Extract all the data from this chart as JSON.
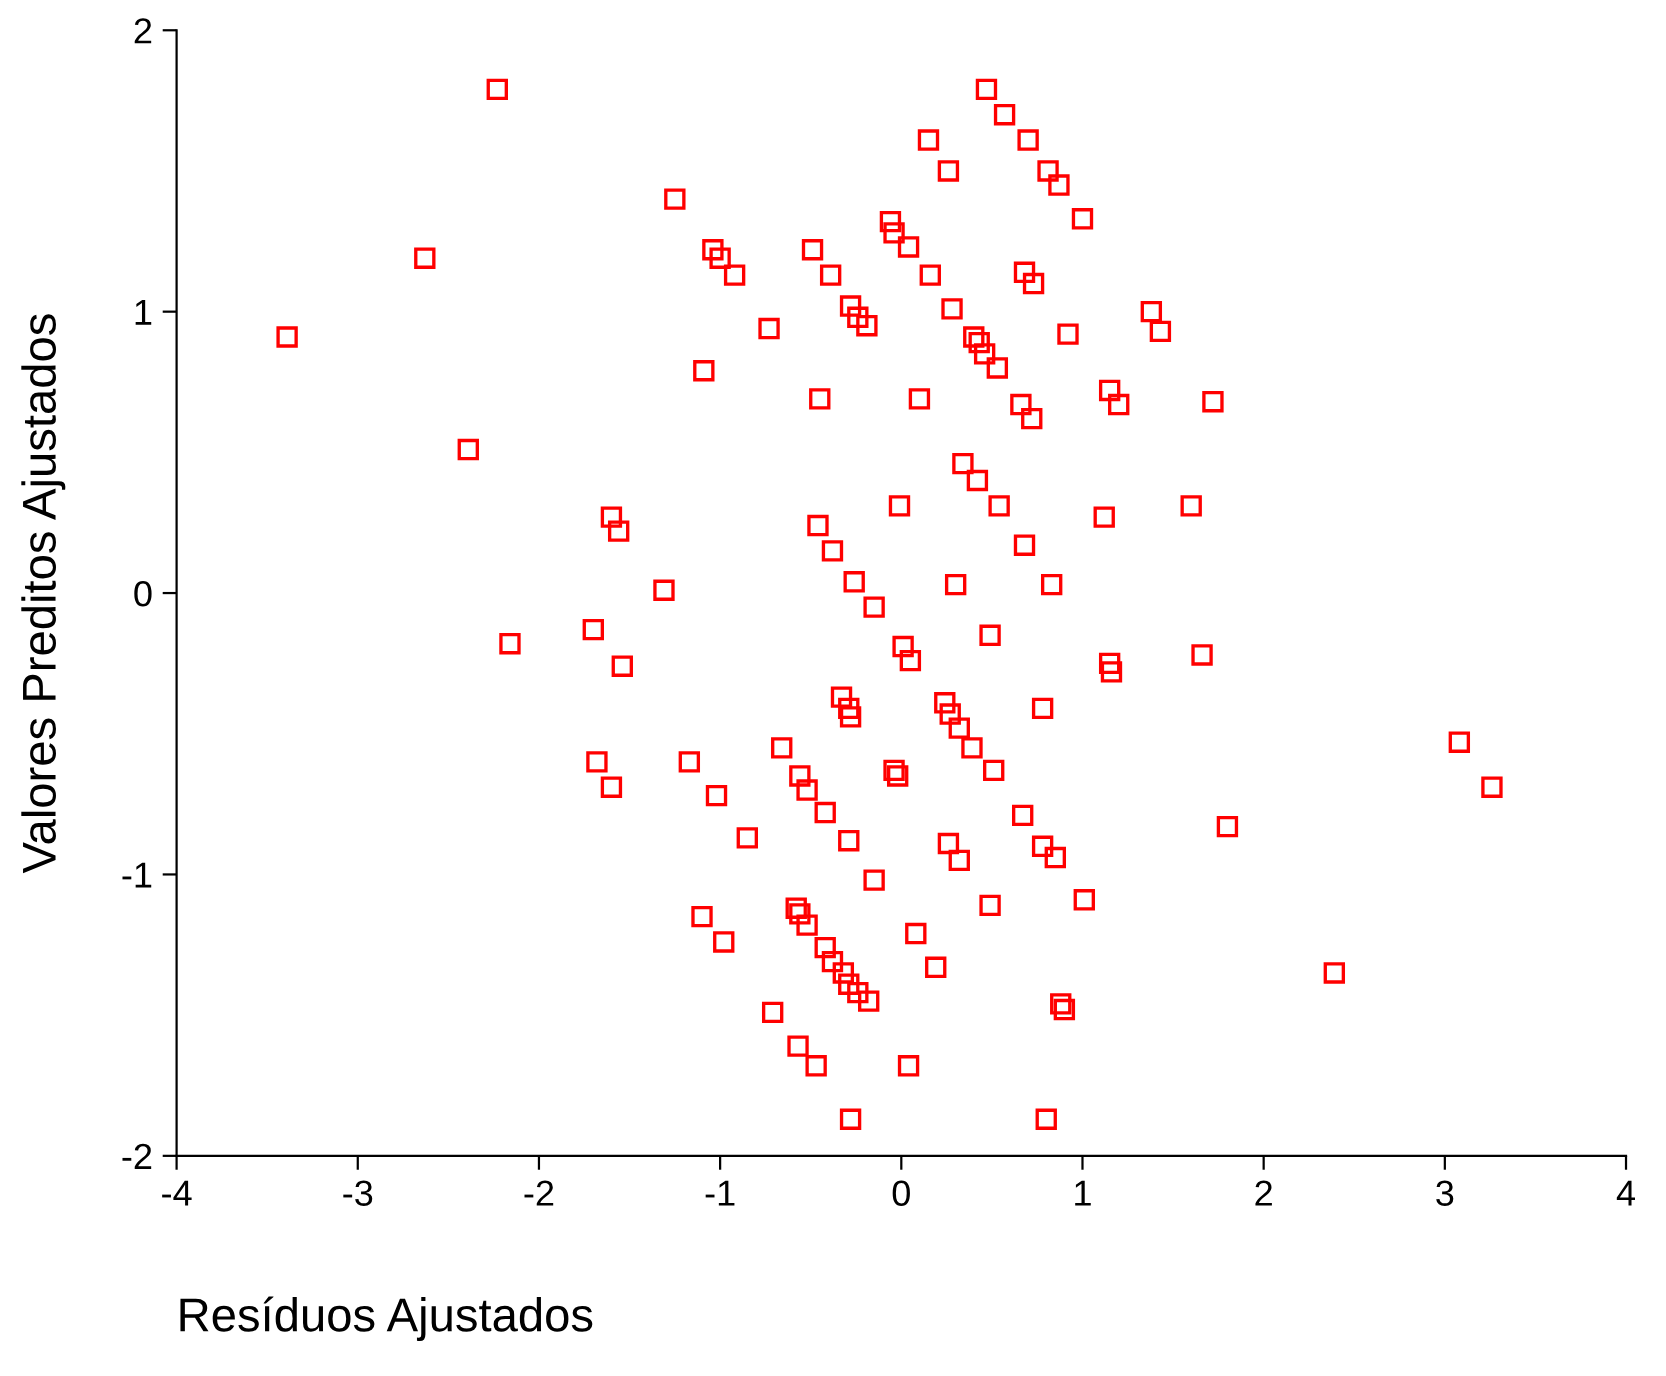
{
  "chart_data": {
    "type": "scatter",
    "xlabel": "Resíduos Ajustados",
    "ylabel": "Valores Preditos Ajustados",
    "xlim": [
      -4,
      4
    ],
    "ylim": [
      -2,
      2
    ],
    "xticks": [
      -4,
      -3,
      -2,
      -1,
      0,
      1,
      2,
      3,
      4
    ],
    "yticks": [
      -2,
      -1,
      0,
      1,
      2
    ],
    "grid": false,
    "legend": false,
    "marker": "square",
    "series": [
      {
        "color": "#ff0000",
        "x": [
          -3.39,
          -2.63,
          -2.23,
          -2.39,
          -2.16,
          -1.7,
          -1.68,
          -1.6,
          -1.6,
          -1.56,
          -1.54,
          -1.31,
          -1.25,
          -1.17,
          -1.1,
          -1.09,
          -1.04,
          -1.0,
          -1.02,
          -0.98,
          -0.92,
          -0.85,
          -0.73,
          -0.71,
          -0.66,
          -0.57,
          -0.58,
          -0.56,
          -0.56,
          -0.52,
          -0.52,
          -0.49,
          -0.46,
          -0.47,
          -0.45,
          -0.42,
          -0.42,
          -0.39,
          -0.38,
          -0.38,
          -0.33,
          -0.32,
          -0.29,
          -0.28,
          -0.29,
          -0.28,
          -0.26,
          -0.28,
          -0.29,
          -0.24,
          -0.24,
          -0.19,
          -0.18,
          -0.15,
          -0.15,
          -0.06,
          -0.04,
          -0.04,
          -0.02,
          -0.01,
          0.01,
          0.04,
          0.05,
          0.08,
          0.04,
          0.1,
          0.15,
          0.16,
          0.19,
          0.24,
          0.26,
          0.26,
          0.27,
          0.28,
          0.3,
          0.32,
          0.32,
          0.34,
          0.39,
          0.4,
          0.43,
          0.42,
          0.46,
          0.47,
          0.49,
          0.49,
          0.51,
          0.53,
          0.54,
          0.57,
          0.67,
          0.66,
          0.68,
          0.7,
          0.68,
          0.72,
          0.73,
          0.78,
          0.8,
          0.78,
          0.81,
          0.83,
          0.85,
          0.87,
          0.88,
          0.9,
          0.92,
          1.0,
          1.01,
          1.12,
          1.15,
          1.15,
          1.16,
          1.2,
          1.38,
          1.43,
          1.6,
          1.66,
          1.72,
          1.8,
          2.39,
          3.08,
          3.26
        ],
        "values": [
          0.91,
          1.19,
          1.79,
          0.51,
          -0.18,
          -0.13,
          -0.6,
          -0.69,
          0.27,
          0.22,
          -0.26,
          0.01,
          1.4,
          -0.6,
          -1.15,
          0.79,
          1.22,
          1.19,
          -0.72,
          -1.24,
          1.13,
          -0.87,
          0.94,
          -1.49,
          -0.55,
          -1.61,
          -1.12,
          -1.14,
          -0.65,
          -1.18,
          -0.7,
          1.22,
          0.24,
          -1.68,
          0.69,
          -0.78,
          -1.26,
          1.13,
          -1.31,
          0.15,
          -0.37,
          -1.35,
          -0.41,
          -0.44,
          -0.88,
          1.02,
          0.04,
          -1.87,
          -1.39,
          0.98,
          -1.42,
          0.95,
          -1.45,
          -0.05,
          -1.02,
          1.32,
          1.28,
          -0.63,
          -0.65,
          0.31,
          -0.19,
          1.23,
          -0.24,
          -1.21,
          -1.68,
          0.69,
          1.61,
          1.13,
          -1.33,
          -0.39,
          1.5,
          -0.89,
          -0.43,
          1.01,
          0.03,
          -0.48,
          -0.95,
          0.46,
          -0.55,
          0.91,
          0.89,
          0.4,
          0.85,
          1.79,
          -0.15,
          -1.11,
          -0.63,
          0.8,
          0.31,
          1.7,
          -0.79,
          0.67,
          0.17,
          1.61,
          1.14,
          0.62,
          1.1,
          -0.41,
          -1.87,
          -0.9,
          1.5,
          0.03,
          -0.94,
          1.45,
          -1.46,
          -1.48,
          0.92,
          1.33,
          -1.09,
          0.27,
          -0.25,
          0.72,
          -0.28,
          0.67,
          1.0,
          0.93,
          0.31,
          -0.22,
          0.68,
          -0.83,
          -1.35,
          -0.53,
          -0.69
        ]
      }
    ]
  }
}
